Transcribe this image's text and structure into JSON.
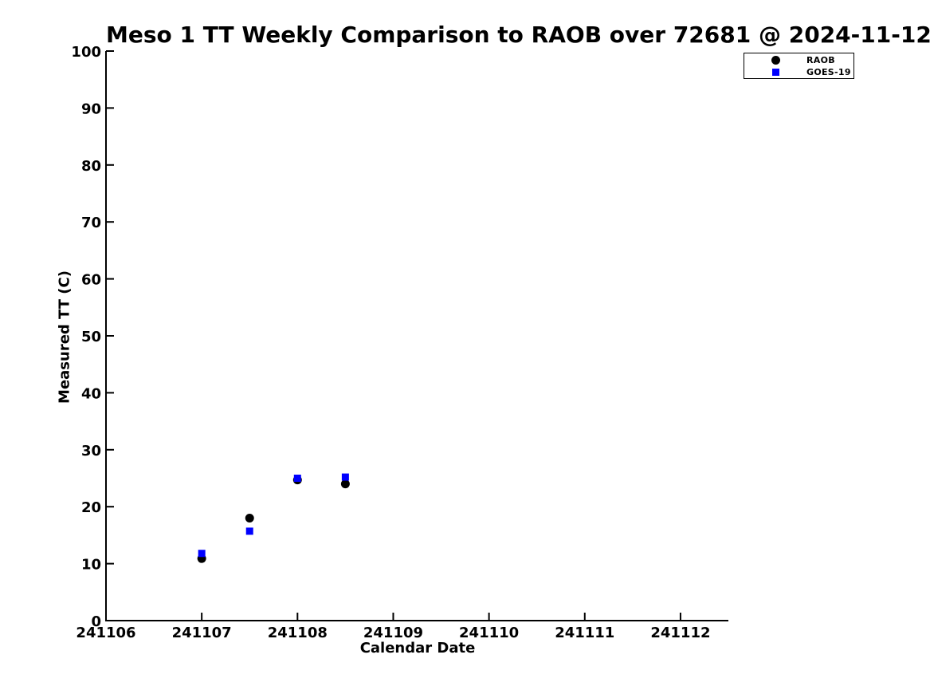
{
  "chart_data": {
    "type": "scatter",
    "title": "Meso 1 TT Weekly Comparison to RAOB over 72681 @ 2024-11-12",
    "xlabel": "Calendar Date",
    "ylabel": "Measured TT (C)",
    "xlim": [
      241106,
      241112.5
    ],
    "ylim": [
      0,
      100
    ],
    "xticks": [
      241106,
      241107,
      241108,
      241109,
      241110,
      241111,
      241112
    ],
    "yticks": [
      0,
      10,
      20,
      30,
      40,
      50,
      60,
      70,
      80,
      90,
      100
    ],
    "grid": false,
    "tick_direction": "in",
    "legend_position": "top-right",
    "series": [
      {
        "name": "RAOB",
        "marker": "circle",
        "color": "#000000",
        "x": [
          241107,
          241107.5,
          241108,
          241108.5
        ],
        "y": [
          10.9,
          18.0,
          24.7,
          24.0
        ]
      },
      {
        "name": "GOES-19",
        "marker": "square",
        "color": "#0000ff",
        "x": [
          241107,
          241107.5,
          241108,
          241108.5
        ],
        "y": [
          11.8,
          15.7,
          25.0,
          25.2
        ]
      }
    ]
  },
  "colors": {
    "background": "#ffffff",
    "axis": "#000000",
    "text": "#000000",
    "raob": "#000000",
    "goes19": "#0000ff"
  }
}
